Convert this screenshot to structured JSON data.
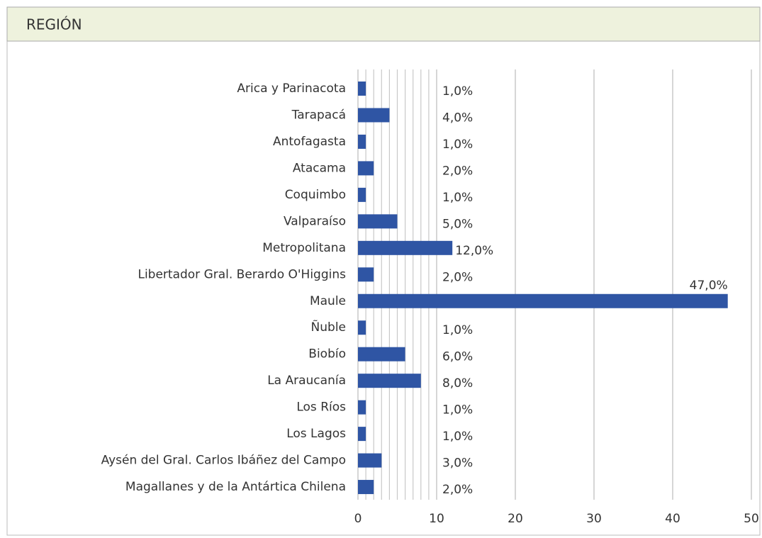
{
  "chart_data": {
    "type": "barh",
    "title": "REGIÓN",
    "categories": [
      "Arica y Parinacota",
      "Tarapacá",
      "Antofagasta",
      "Atacama",
      "Coquimbo",
      "Valparaíso",
      "Metropolitana",
      "Libertador Gral. Berardo O'Higgins",
      "Maule",
      "Ñuble",
      "Biobío",
      "La Araucanía",
      "Los Ríos",
      "Los Lagos",
      "Aysén del Gral. Carlos Ibáñez del Campo",
      "Magallanes y de la Antártica Chilena"
    ],
    "values": [
      1,
      4,
      1,
      2,
      1,
      5,
      12,
      2,
      47,
      1,
      6,
      8,
      1,
      1,
      3,
      2
    ],
    "value_labels": [
      "1,0%",
      "4,0%",
      "1,0%",
      "2,0%",
      "1,0%",
      "5,0%",
      "12,0%",
      "2,0%",
      "47,0%",
      "1,0%",
      "6,0%",
      "8,0%",
      "1,0%",
      "1,0%",
      "3,0%",
      "2,0%"
    ],
    "color": "#2f55a4",
    "xlim": [
      0,
      50
    ],
    "xticks": [
      0,
      10,
      20,
      30,
      40,
      50
    ],
    "minor_gridlines": [
      1,
      2,
      3,
      4,
      5,
      6,
      7,
      8,
      9
    ],
    "grid": true
  }
}
